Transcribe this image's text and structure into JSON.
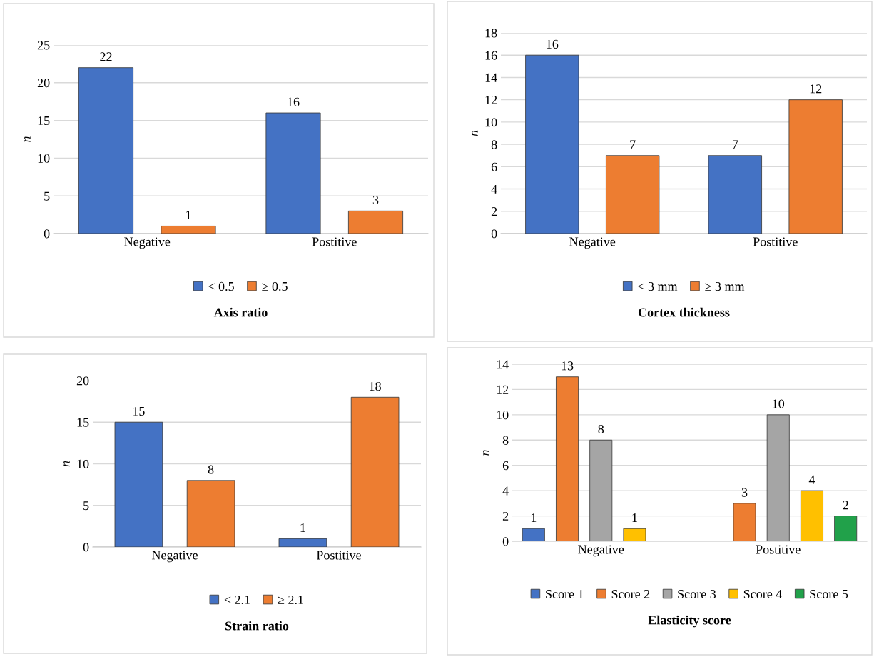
{
  "chart_data": [
    {
      "type": "bar",
      "title": "Axis ratio",
      "ylabel": "n",
      "categories": [
        "Negative",
        "Postitive"
      ],
      "ylim": [
        0,
        25
      ],
      "yticks": [
        0,
        5,
        10,
        15,
        20,
        25
      ],
      "grid": "y",
      "legend": "bottom",
      "data_labels": true,
      "series": [
        {
          "name": "< 0.5",
          "color": "#4472c4",
          "values": [
            22,
            16
          ]
        },
        {
          "name": "≥ 0.5",
          "color": "#ed7d31",
          "values": [
            1,
            3
          ]
        }
      ]
    },
    {
      "type": "bar",
      "title": "Cortex thickness",
      "ylabel": "n",
      "categories": [
        "Negative",
        "Postitive"
      ],
      "ylim": [
        0,
        18
      ],
      "yticks": [
        0,
        2,
        4,
        6,
        8,
        10,
        12,
        14,
        16,
        18
      ],
      "grid": "y",
      "legend": "bottom",
      "data_labels": true,
      "series": [
        {
          "name": "< 3 mm",
          "color": "#4472c4",
          "values": [
            16,
            7
          ]
        },
        {
          "name": "≥ 3 mm",
          "color": "#ed7d31",
          "values": [
            7,
            12
          ]
        }
      ]
    },
    {
      "type": "bar",
      "title": "Strain ratio",
      "ylabel": "n",
      "categories": [
        "Negative",
        "Postitive"
      ],
      "ylim": [
        0,
        20
      ],
      "yticks": [
        0,
        5,
        10,
        15,
        20
      ],
      "grid": "y",
      "legend": "bottom",
      "data_labels": true,
      "series": [
        {
          "name": "< 2.1",
          "color": "#4472c4",
          "values": [
            15,
            1
          ]
        },
        {
          "name": "≥ 2.1",
          "color": "#ed7d31",
          "values": [
            8,
            18
          ]
        }
      ]
    },
    {
      "type": "bar",
      "title": "Elasticity score",
      "ylabel": "n",
      "categories": [
        "Negative",
        "Postitive"
      ],
      "ylim": [
        0,
        14
      ],
      "yticks": [
        0,
        2,
        4,
        6,
        8,
        10,
        12,
        14
      ],
      "grid": "y",
      "legend": "bottom",
      "data_labels": true,
      "series": [
        {
          "name": "Score 1",
          "color": "#4472c4",
          "values": [
            1,
            null
          ]
        },
        {
          "name": "Score 2",
          "color": "#ed7d31",
          "values": [
            13,
            3
          ]
        },
        {
          "name": "Score 3",
          "color": "#a5a5a5",
          "values": [
            8,
            10
          ]
        },
        {
          "name": "Score 4",
          "color": "#ffc000",
          "values": [
            1,
            4
          ]
        },
        {
          "name": "Score 5",
          "color": "#21a14a",
          "values": [
            null,
            2
          ]
        }
      ]
    }
  ]
}
